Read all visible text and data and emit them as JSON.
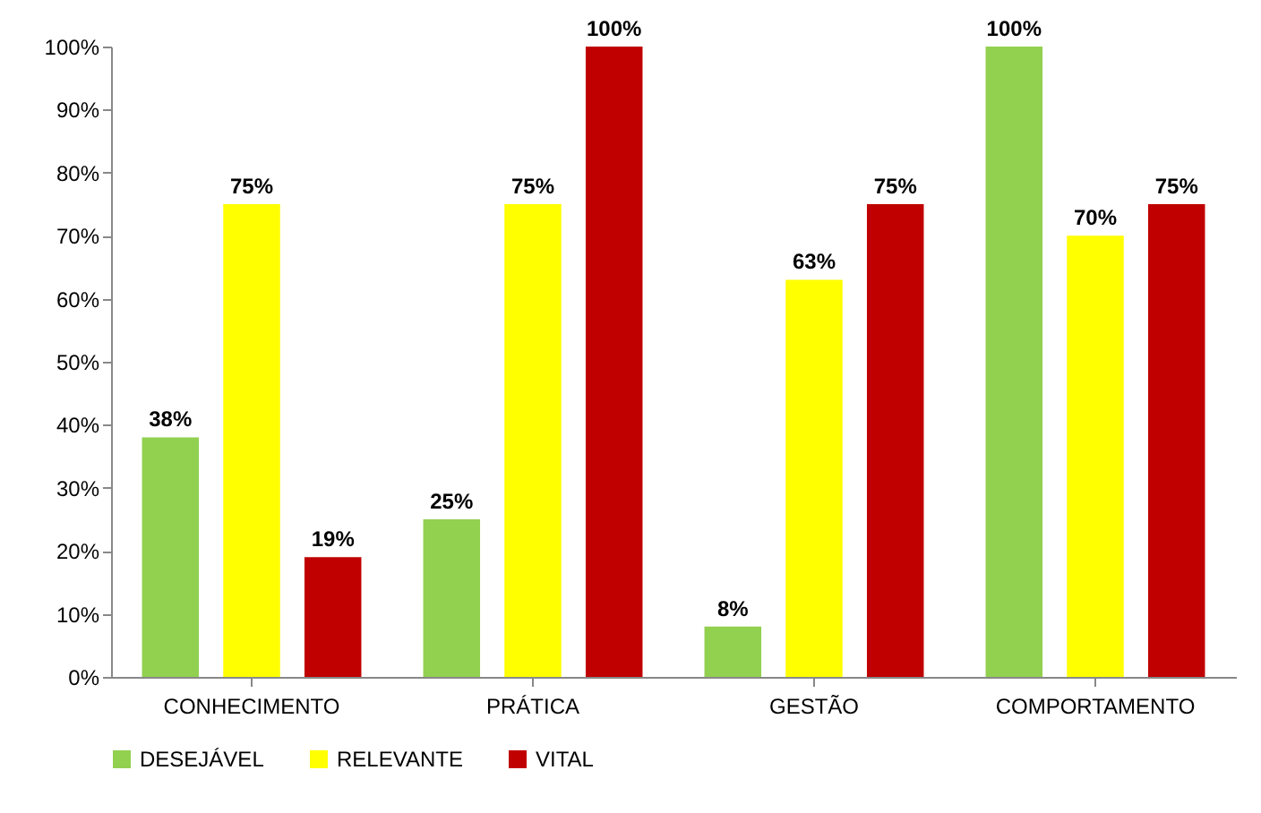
{
  "chart_data": {
    "type": "bar",
    "categories": [
      "CONHECIMENTO",
      "PRÁTICA",
      "GESTÃO",
      "COMPORTAMENTO"
    ],
    "series": [
      {
        "name": "DESEJÁVEL",
        "color": "#92d050",
        "values": [
          38,
          25,
          8,
          100
        ],
        "value_labels": [
          "38%",
          "25%",
          "8%",
          "100%"
        ]
      },
      {
        "name": "RELEVANTE",
        "color": "#ffff00",
        "values": [
          75,
          75,
          63,
          70
        ],
        "value_labels": [
          "75%",
          "75%",
          "63%",
          "70%"
        ]
      },
      {
        "name": "VITAL",
        "color": "#c00000",
        "values": [
          19,
          100,
          75,
          75
        ],
        "value_labels": [
          "19%",
          "100%",
          "75%",
          "75%"
        ]
      }
    ],
    "ylim": [
      0,
      100
    ],
    "yticks": [
      {
        "value": 0,
        "label": "0%"
      },
      {
        "value": 10,
        "label": "10%"
      },
      {
        "value": 20,
        "label": "20%"
      },
      {
        "value": 30,
        "label": "30%"
      },
      {
        "value": 40,
        "label": "40%"
      },
      {
        "value": 50,
        "label": "50%"
      },
      {
        "value": 60,
        "label": "60%"
      },
      {
        "value": 70,
        "label": "70%"
      },
      {
        "value": 80,
        "label": "80%"
      },
      {
        "value": 90,
        "label": "90%"
      },
      {
        "value": 100,
        "label": "100%"
      }
    ],
    "grid": false,
    "legend": "bottom"
  }
}
